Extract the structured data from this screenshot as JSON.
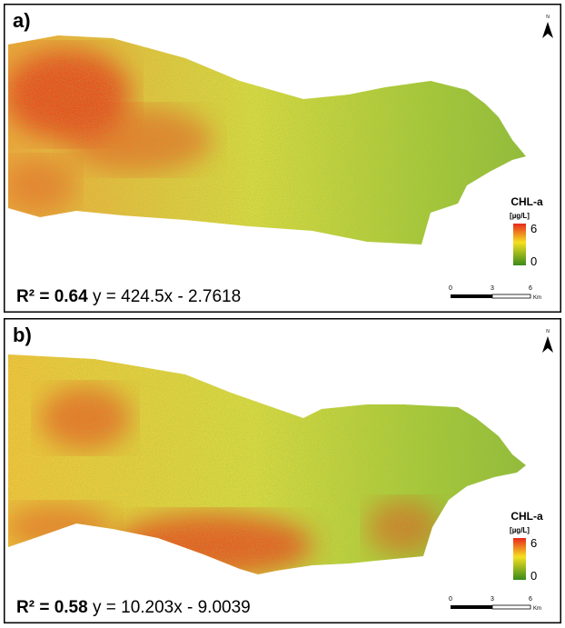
{
  "panels": [
    {
      "label": "a)",
      "north": "N",
      "legend": {
        "title": "CHL-a",
        "unit": "[µg/L]",
        "max": 6,
        "min": 0
      },
      "r2": "R² = 0.64",
      "equation": "y =  424.5x - 2.7618",
      "scale": {
        "ticks": [
          0,
          3,
          6
        ],
        "unit": "Km"
      }
    },
    {
      "label": "b)",
      "north": "N",
      "legend": {
        "title": "CHL-a",
        "unit": "[µg/L]",
        "max": 6,
        "min": 0
      },
      "r2": "R² = 0.58",
      "equation": "y = 10.203x - 9.0039",
      "scale": {
        "ticks": [
          0,
          3,
          6
        ],
        "unit": "Km"
      }
    }
  ]
}
